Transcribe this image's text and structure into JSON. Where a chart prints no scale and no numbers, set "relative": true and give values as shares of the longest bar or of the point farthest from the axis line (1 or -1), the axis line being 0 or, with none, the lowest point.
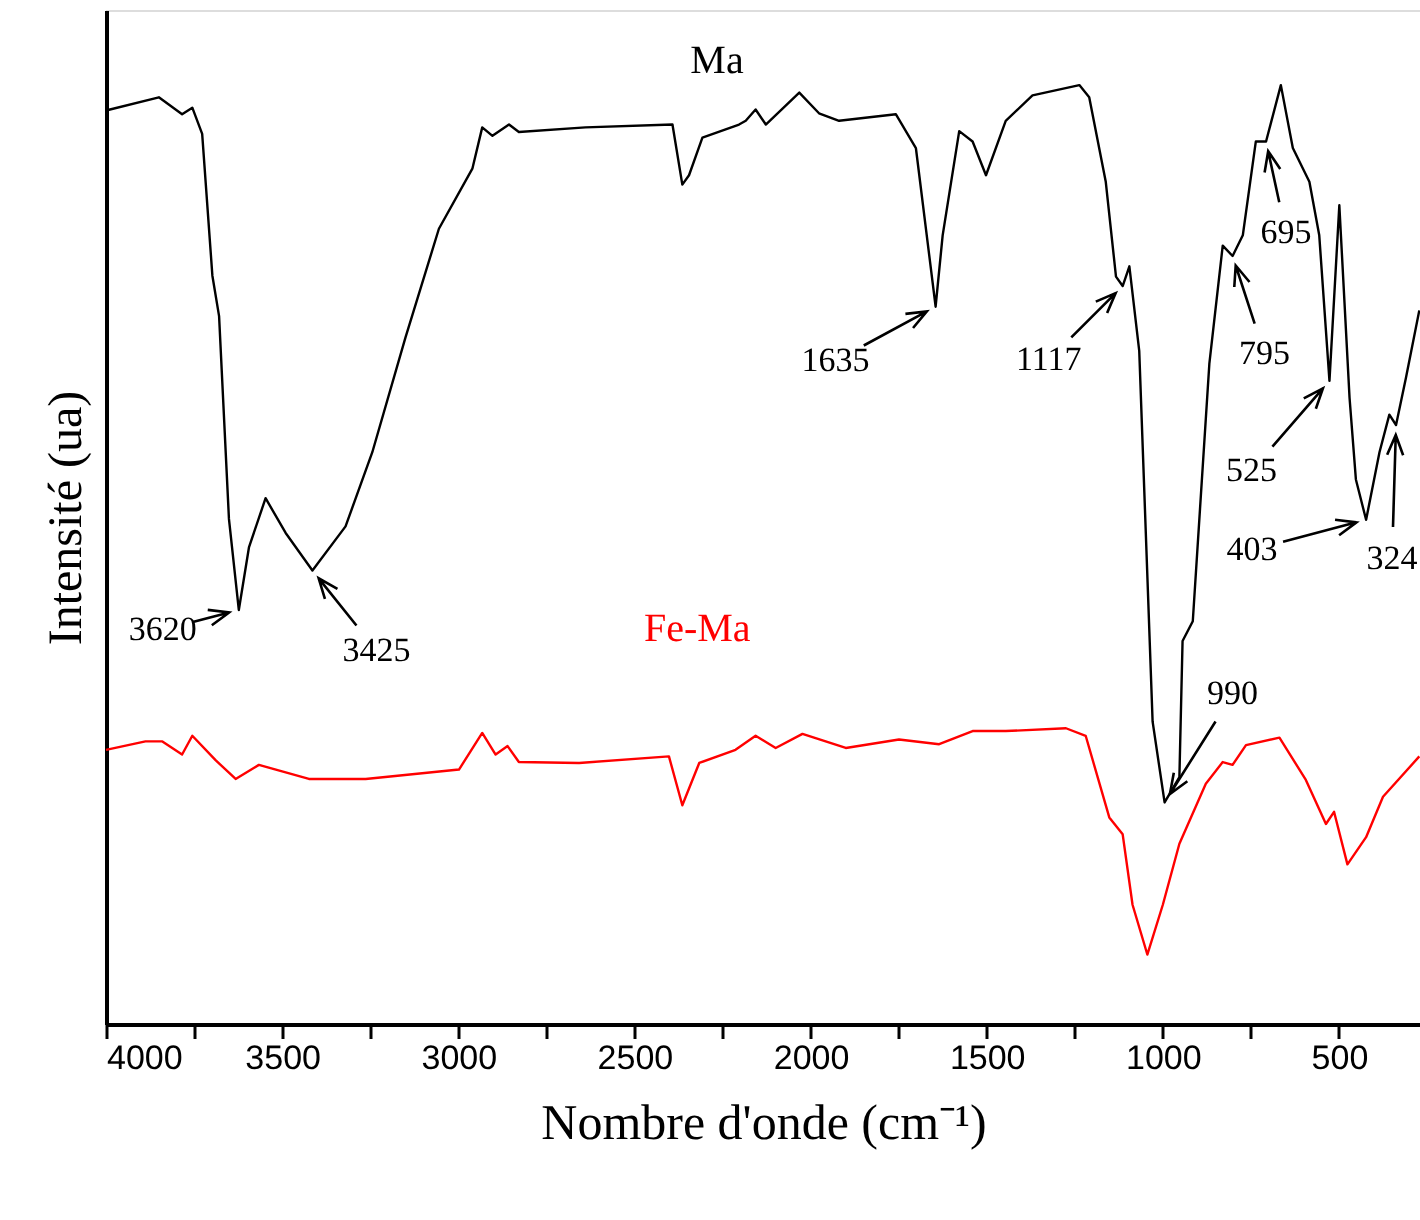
{
  "chart_data": {
    "type": "line",
    "relative": true,
    "xlabel": "Nombre d'onde (cm⁻¹)",
    "ylabel": "Intensité (ua)",
    "xlim": [
      4000,
      270
    ],
    "xticks": [
      4000,
      {
        "value": 3750,
        "label": null
      },
      3500,
      {
        "value": 3250,
        "label": null
      },
      3000,
      {
        "value": 2750,
        "label": null
      },
      2500,
      {
        "value": 2250,
        "label": null
      },
      2000,
      {
        "value": 1750,
        "label": null
      },
      1500,
      {
        "value": 1250,
        "label": null
      },
      1000,
      {
        "value": 750,
        "label": null
      },
      500
    ],
    "grid": false,
    "marker": "none",
    "line_style": "solid",
    "series": [
      {
        "name": "Ma",
        "color": "#000000",
        "x": [
          4000,
          3850,
          3784,
          3755,
          3727,
          3698,
          3679,
          3651,
          3623,
          3594,
          3547,
          3490,
          3414,
          3320,
          3244,
          3150,
          3055,
          2960,
          2932,
          2903,
          2856,
          2828,
          2639,
          2392,
          2364,
          2345,
          2307,
          2203,
          2184,
          2156,
          2127,
          2032,
          1976,
          1919,
          1758,
          1701,
          1645,
          1625,
          1578,
          1540,
          1502,
          1446,
          1370,
          1237,
          1209,
          1162,
          1133,
          1114,
          1095,
          1067,
          1029,
          995,
          953,
          944,
          915,
          868,
          830,
          802,
          773,
          736,
          707,
          665,
          631,
          584,
          556,
          527,
          499,
          470,
          452,
          423,
          385,
          357,
          338,
          310,
          272
        ],
        "values": [
          0.973,
          0.987,
          0.969,
          0.976,
          0.948,
          0.797,
          0.754,
          0.538,
          0.441,
          0.508,
          0.56,
          0.523,
          0.483,
          0.53,
          0.609,
          0.731,
          0.847,
          0.911,
          0.955,
          0.946,
          0.958,
          0.95,
          0.955,
          0.958,
          0.894,
          0.904,
          0.944,
          0.958,
          0.962,
          0.974,
          0.958,
          0.992,
          0.97,
          0.962,
          0.969,
          0.933,
          0.764,
          0.84,
          0.951,
          0.94,
          0.904,
          0.962,
          0.989,
          1,
          0.987,
          0.897,
          0.796,
          0.786,
          0.807,
          0.717,
          0.322,
          0.236,
          0.263,
          0.408,
          0.429,
          0.703,
          0.829,
          0.818,
          0.84,
          0.94,
          0.94,
          1,
          0.933,
          0.897,
          0.84,
          0.685,
          0.872,
          0.667,
          0.58,
          0.537,
          0.609,
          0.649,
          0.638,
          0.688,
          0.76
        ]
      },
      {
        "name": "Fe-Ma",
        "color": "#ff0000",
        "x": [
          4000,
          3888,
          3840,
          3784,
          3755,
          3689,
          3632,
          3566,
          3424,
          3263,
          2998,
          2932,
          2894,
          2860,
          2828,
          2657,
          2402,
          2364,
          2316,
          2213,
          2156,
          2099,
          2023,
          1900,
          1749,
          1635,
          1540,
          1446,
          1275,
          1219,
          1152,
          1114,
          1086,
          1044,
          1000,
          953,
          878,
          830,
          802,
          764,
          669,
          594,
          537,
          514,
          476,
          423,
          375,
          272
        ],
        "values": [
          0.292,
          0.301,
          0.301,
          0.287,
          0.307,
          0.281,
          0.261,
          0.276,
          0.261,
          0.261,
          0.271,
          0.31,
          0.287,
          0.296,
          0.279,
          0.278,
          0.285,
          0.233,
          0.278,
          0.292,
          0.307,
          0.294,
          0.309,
          0.294,
          0.303,
          0.298,
          0.312,
          0.312,
          0.315,
          0.307,
          0.22,
          0.202,
          0.127,
          0.074,
          0.127,
          0.192,
          0.256,
          0.279,
          0.276,
          0.297,
          0.305,
          0.26,
          0.213,
          0.226,
          0.17,
          0.199,
          0.242,
          0.285
        ]
      }
    ],
    "annotations": [
      {
        "text": "3620",
        "x": 3623,
        "y": 0.441
      },
      {
        "text": "3425",
        "x": 3414,
        "y": 0.483
      },
      {
        "text": "1635",
        "x": 1645,
        "y": 0.764
      },
      {
        "text": "1117",
        "x": 1114,
        "y": 0.786
      },
      {
        "text": "990",
        "x": 995,
        "y": 0.236
      },
      {
        "text": "795",
        "x": 802,
        "y": 0.818
      },
      {
        "text": "695",
        "x": 707,
        "y": 0.94
      },
      {
        "text": "525",
        "x": 527,
        "y": 0.685
      },
      {
        "text": "403",
        "x": 423,
        "y": 0.537
      },
      {
        "text": "324",
        "x": 338,
        "y": 0.638
      }
    ]
  }
}
